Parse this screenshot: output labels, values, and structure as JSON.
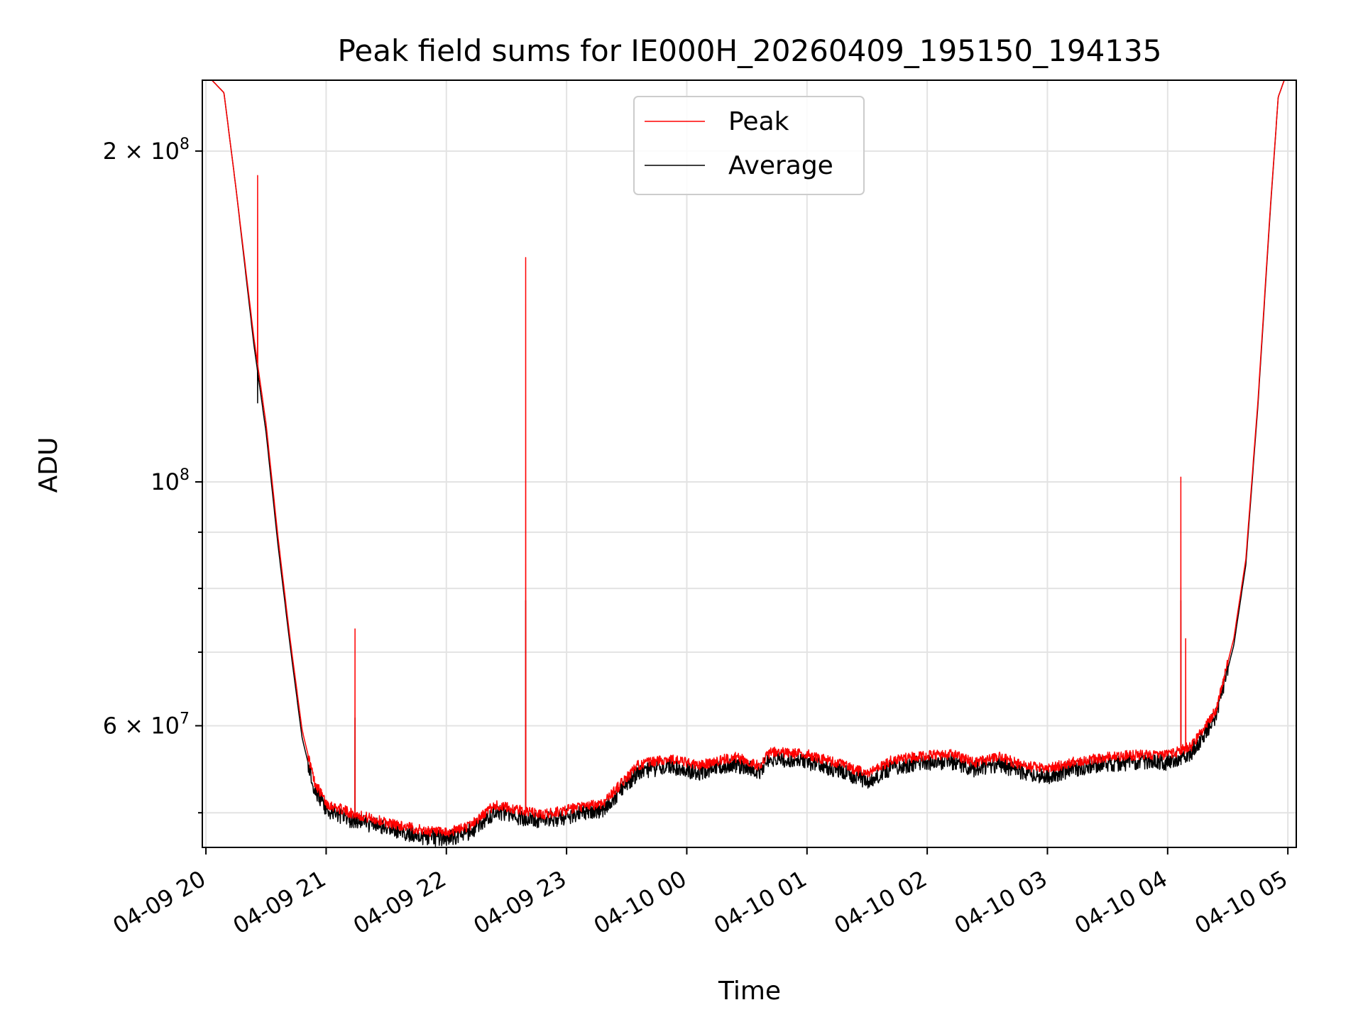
{
  "chart_data": {
    "type": "line",
    "title": "Peak field sums for IE000H_20260409_195150_194135",
    "xlabel": "Time",
    "ylabel": "ADU",
    "yscale": "log",
    "ylim": [
      46500000,
      232000000
    ],
    "x_unit": "hours since 04-09 20:00",
    "xlim": [
      -0.03,
      9.07
    ],
    "grid": true,
    "legend_position": "upper center",
    "x_ticks": [
      {
        "value": 0,
        "label": "04-09 20"
      },
      {
        "value": 1,
        "label": "04-09 21"
      },
      {
        "value": 2,
        "label": "04-09 22"
      },
      {
        "value": 3,
        "label": "04-09 23"
      },
      {
        "value": 4,
        "label": "04-10 00"
      },
      {
        "value": 5,
        "label": "04-10 01"
      },
      {
        "value": 6,
        "label": "04-10 02"
      },
      {
        "value": 7,
        "label": "04-10 03"
      },
      {
        "value": 8,
        "label": "04-10 04"
      },
      {
        "value": 9,
        "label": "04-10 05"
      }
    ],
    "y_major_ticks": [
      {
        "value": 60000000,
        "label": "6 × 10",
        "exp": "7"
      },
      {
        "value": 100000000,
        "label": "10",
        "exp": "8"
      },
      {
        "value": 200000000,
        "label": "2 × 10",
        "exp": "8"
      }
    ],
    "y_minor_ticks": [
      50000000,
      70000000,
      80000000,
      90000000
    ],
    "series": [
      {
        "name": "Peak",
        "color": "#ff0000",
        "base": [
          [
            -0.03,
            232000000
          ],
          [
            0.05,
            232000000
          ],
          [
            0.15,
            226000000
          ],
          [
            0.25,
            185000000
          ],
          [
            0.4,
            135000000
          ],
          [
            0.5,
            113000000
          ],
          [
            0.6,
            89000000
          ],
          [
            0.7,
            72000000
          ],
          [
            0.8,
            59500000
          ],
          [
            0.9,
            53500000
          ],
          [
            1.0,
            51000000
          ],
          [
            1.2,
            50000000
          ],
          [
            1.5,
            49000000
          ],
          [
            1.8,
            48200000
          ],
          [
            2.0,
            47900000
          ],
          [
            2.2,
            48700000
          ],
          [
            2.4,
            50800000
          ],
          [
            2.6,
            50300000
          ],
          [
            2.8,
            49800000
          ],
          [
            3.0,
            50300000
          ],
          [
            3.3,
            51000000
          ],
          [
            3.6,
            55300000
          ],
          [
            3.85,
            56000000
          ],
          [
            4.1,
            55200000
          ],
          [
            4.4,
            56200000
          ],
          [
            4.6,
            55200000
          ],
          [
            4.7,
            56800000
          ],
          [
            5.0,
            56500000
          ],
          [
            5.3,
            55300000
          ],
          [
            5.5,
            54200000
          ],
          [
            5.7,
            55800000
          ],
          [
            6.0,
            56400000
          ],
          [
            6.2,
            56500000
          ],
          [
            6.4,
            55600000
          ],
          [
            6.6,
            56200000
          ],
          [
            6.8,
            55200000
          ],
          [
            7.0,
            54800000
          ],
          [
            7.2,
            55600000
          ],
          [
            7.5,
            56200000
          ],
          [
            7.8,
            56500000
          ],
          [
            8.0,
            56400000
          ],
          [
            8.2,
            57500000
          ],
          [
            8.4,
            62000000
          ],
          [
            8.55,
            72000000
          ],
          [
            8.65,
            85000000
          ],
          [
            8.75,
            118000000
          ],
          [
            8.85,
            175000000
          ],
          [
            8.92,
            224000000
          ],
          [
            8.97,
            232000000
          ],
          [
            9.07,
            232000000
          ]
        ],
        "spikes": [
          [
            0.43,
            190000000
          ],
          [
            1.24,
            73500000
          ],
          [
            2.66,
            160000000
          ],
          [
            8.11,
            101000000
          ],
          [
            8.15,
            72000000
          ]
        ]
      },
      {
        "name": "Average",
        "color": "#000000",
        "base": [
          [
            -0.03,
            232000000
          ],
          [
            0.05,
            232000000
          ],
          [
            0.15,
            226000000
          ],
          [
            0.25,
            185000000
          ],
          [
            0.4,
            133000000
          ],
          [
            0.5,
            111000000
          ],
          [
            0.6,
            87500000
          ],
          [
            0.7,
            71000000
          ],
          [
            0.8,
            58500000
          ],
          [
            0.9,
            52700000
          ],
          [
            1.0,
            50300000
          ],
          [
            1.2,
            49300000
          ],
          [
            1.5,
            48400000
          ],
          [
            1.8,
            47600000
          ],
          [
            2.0,
            47300000
          ],
          [
            2.2,
            48100000
          ],
          [
            2.4,
            50100000
          ],
          [
            2.6,
            49600000
          ],
          [
            2.8,
            49200000
          ],
          [
            3.0,
            49600000
          ],
          [
            3.3,
            50300000
          ],
          [
            3.6,
            54500000
          ],
          [
            3.85,
            55200000
          ],
          [
            4.1,
            54400000
          ],
          [
            4.4,
            55400000
          ],
          [
            4.6,
            54400000
          ],
          [
            4.7,
            56000000
          ],
          [
            5.0,
            55700000
          ],
          [
            5.3,
            54500000
          ],
          [
            5.5,
            53400000
          ],
          [
            5.7,
            55000000
          ],
          [
            6.0,
            55600000
          ],
          [
            6.2,
            55700000
          ],
          [
            6.4,
            54800000
          ],
          [
            6.6,
            55400000
          ],
          [
            6.8,
            54400000
          ],
          [
            7.0,
            54000000
          ],
          [
            7.2,
            54800000
          ],
          [
            7.5,
            55400000
          ],
          [
            7.8,
            55700000
          ],
          [
            8.0,
            55600000
          ],
          [
            8.2,
            56700000
          ],
          [
            8.4,
            61200000
          ],
          [
            8.55,
            71000000
          ],
          [
            8.65,
            84000000
          ],
          [
            8.75,
            117000000
          ],
          [
            8.85,
            174000000
          ],
          [
            8.92,
            224000000
          ],
          [
            8.97,
            232000000
          ],
          [
            9.07,
            232000000
          ]
        ],
        "spikes": [
          [
            0.43,
            118000000
          ],
          [
            1.24,
            61000000
          ],
          [
            2.66,
            78000000
          ],
          [
            8.11,
            78000000
          ]
        ]
      }
    ]
  }
}
